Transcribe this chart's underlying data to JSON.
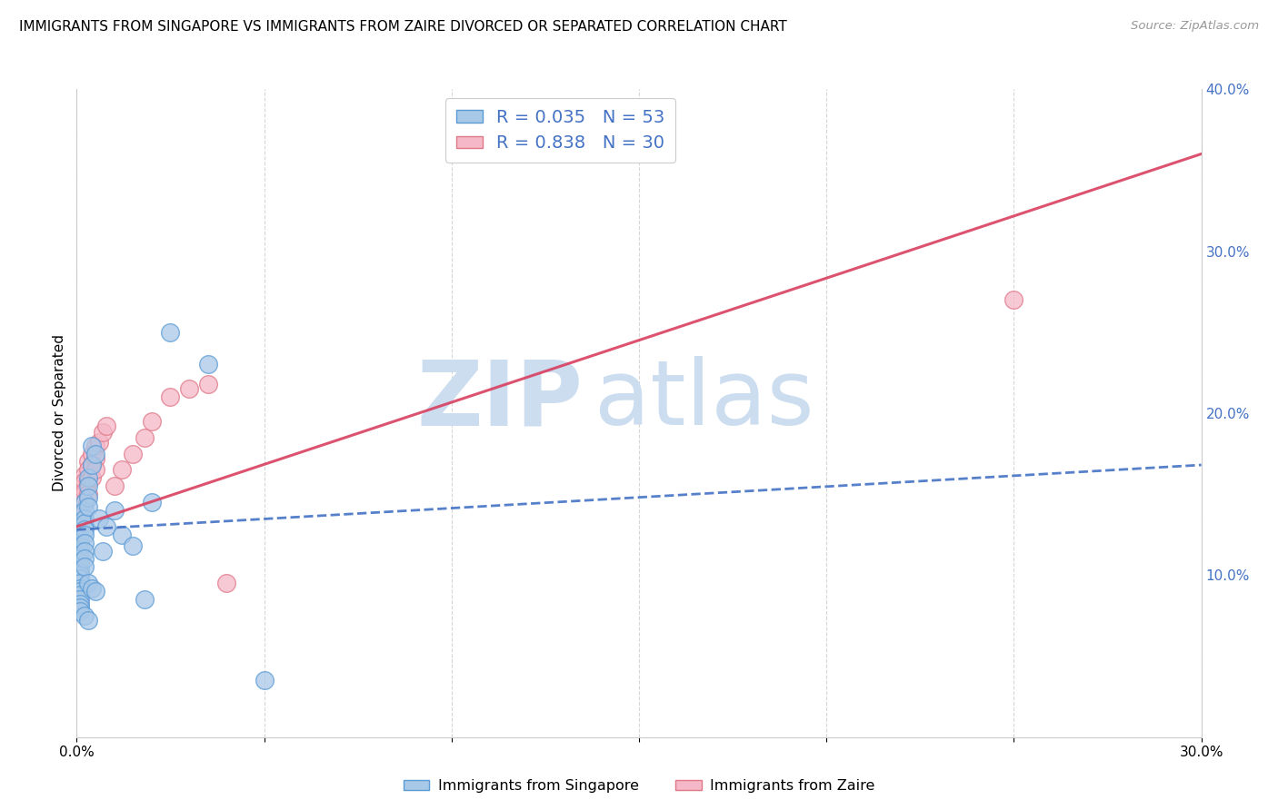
{
  "title": "IMMIGRANTS FROM SINGAPORE VS IMMIGRANTS FROM ZAIRE DIVORCED OR SEPARATED CORRELATION CHART",
  "source": "Source: ZipAtlas.com",
  "ylabel": "Divorced or Separated",
  "xlim": [
    0,
    0.3
  ],
  "ylim": [
    0,
    0.4
  ],
  "xticks": [
    0.0,
    0.05,
    0.1,
    0.15,
    0.2,
    0.25,
    0.3
  ],
  "xtick_labels": [
    "0.0%",
    "",
    "",
    "",
    "",
    "",
    "30.0%"
  ],
  "yticks_right": [
    0.0,
    0.1,
    0.2,
    0.3,
    0.4
  ],
  "ytick_labels_right": [
    "",
    "10.0%",
    "20.0%",
    "30.0%",
    "40.0%"
  ],
  "singapore_color": "#a8c8e8",
  "singapore_edge_color": "#5b9bd5",
  "zaire_color": "#f4b8c8",
  "zaire_edge_color": "#e07888",
  "singapore_R": 0.035,
  "singapore_N": 53,
  "zaire_R": 0.838,
  "zaire_N": 30,
  "trend_singapore_color": "#4472c4",
  "trend_zaire_color": "#d94060",
  "watermark_zip": "ZIP",
  "watermark_atlas": "atlas",
  "watermark_color": "#ccddf0",
  "legend_color_singapore": "#a8c8e8",
  "legend_color_zaire": "#f4b8c8",
  "legend_border_sg": "#5b9bd5",
  "legend_border_z": "#e07888",
  "legend_text_color": "#4472c4",
  "legend_N_color": "#e05060",
  "singapore_points_x": [
    0.001,
    0.001,
    0.001,
    0.001,
    0.001,
    0.001,
    0.001,
    0.001,
    0.001,
    0.001,
    0.001,
    0.001,
    0.001,
    0.001,
    0.001,
    0.001,
    0.001,
    0.001,
    0.001,
    0.001,
    0.002,
    0.002,
    0.002,
    0.002,
    0.002,
    0.002,
    0.002,
    0.002,
    0.002,
    0.002,
    0.002,
    0.003,
    0.003,
    0.003,
    0.003,
    0.003,
    0.003,
    0.004,
    0.004,
    0.004,
    0.005,
    0.005,
    0.006,
    0.007,
    0.008,
    0.01,
    0.012,
    0.015,
    0.018,
    0.02,
    0.025,
    0.035,
    0.05
  ],
  "singapore_points_y": [
    0.13,
    0.125,
    0.12,
    0.118,
    0.115,
    0.112,
    0.11,
    0.108,
    0.105,
    0.102,
    0.1,
    0.098,
    0.095,
    0.092,
    0.09,
    0.088,
    0.085,
    0.082,
    0.08,
    0.078,
    0.145,
    0.14,
    0.135,
    0.132,
    0.128,
    0.125,
    0.12,
    0.115,
    0.11,
    0.105,
    0.075,
    0.16,
    0.155,
    0.148,
    0.142,
    0.095,
    0.072,
    0.18,
    0.168,
    0.092,
    0.175,
    0.09,
    0.135,
    0.115,
    0.13,
    0.14,
    0.125,
    0.118,
    0.085,
    0.145,
    0.25,
    0.23,
    0.035
  ],
  "zaire_points_x": [
    0.001,
    0.001,
    0.001,
    0.002,
    0.002,
    0.002,
    0.002,
    0.003,
    0.003,
    0.003,
    0.003,
    0.004,
    0.004,
    0.004,
    0.005,
    0.005,
    0.005,
    0.006,
    0.007,
    0.008,
    0.01,
    0.012,
    0.015,
    0.018,
    0.02,
    0.025,
    0.03,
    0.035,
    0.04,
    0.25
  ],
  "zaire_points_y": [
    0.155,
    0.148,
    0.14,
    0.162,
    0.158,
    0.152,
    0.145,
    0.17,
    0.165,
    0.158,
    0.15,
    0.175,
    0.168,
    0.16,
    0.18,
    0.172,
    0.165,
    0.182,
    0.188,
    0.192,
    0.155,
    0.165,
    0.175,
    0.185,
    0.195,
    0.21,
    0.215,
    0.218,
    0.095,
    0.27
  ],
  "sg_trend_x0": 0.0,
  "sg_trend_y0": 0.128,
  "sg_trend_x1": 0.3,
  "sg_trend_y1": 0.168,
  "z_trend_x0": 0.0,
  "z_trend_y0": 0.13,
  "z_trend_x1": 0.3,
  "z_trend_y1": 0.36
}
